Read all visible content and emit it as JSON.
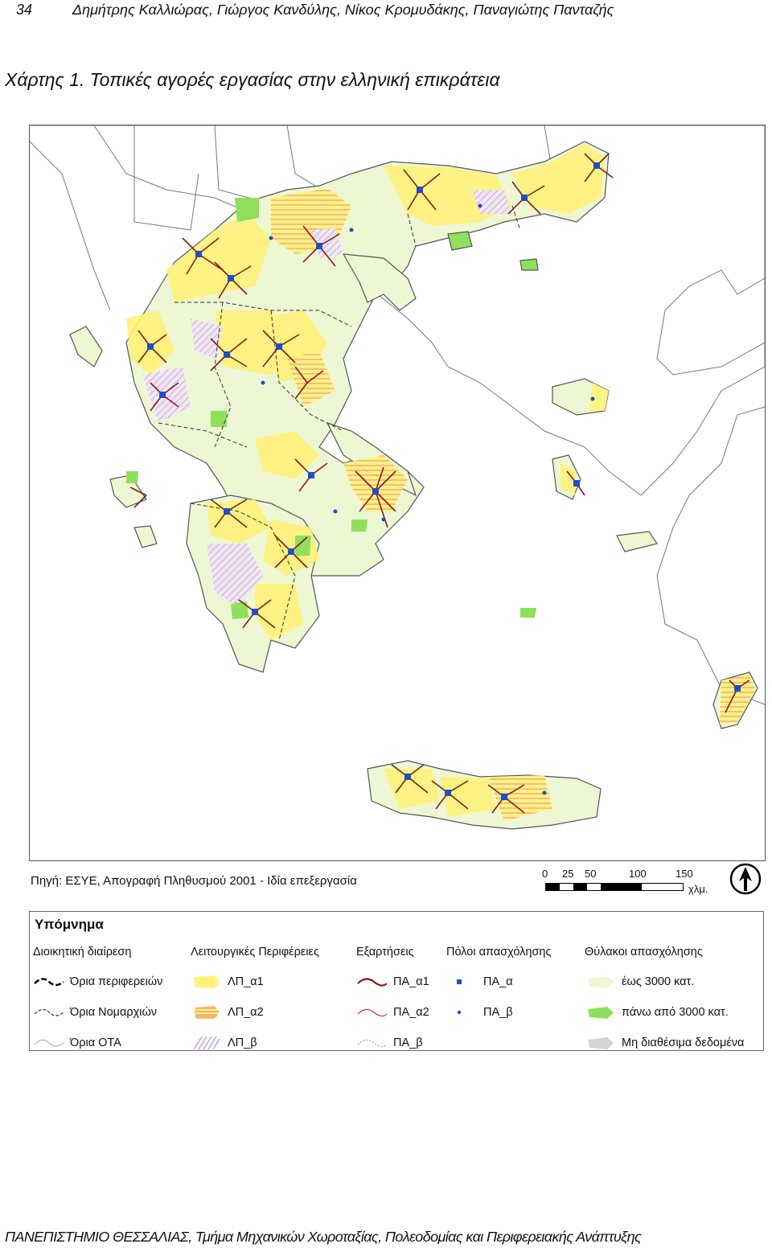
{
  "header": {
    "page_number": "34",
    "authors": "Δημήτρης Καλλιώρας, Γιώργος Κανδύλης, Νίκος Κρομυδάκης, Παναγιώτης Πανταζής"
  },
  "map": {
    "title": "Χάρτης 1. Τοπικές αγορές εργασίας στην ελληνική επικράτεια",
    "source": "Πηγή: ΕΣΥΕ, Απογραφή Πληθυσμού 2001 - Ιδία επεξεργασία",
    "scale": {
      "ticks": [
        "0",
        "25",
        "50",
        "100",
        "150"
      ],
      "unit": "χλμ."
    },
    "colors": {
      "lp_a1": "#fff27a",
      "lp_a2": "#f2b98a",
      "lp_b": "#d9b8e6",
      "low_job": "#eef7d4",
      "high_job": "#8fe05a",
      "no_data": "#d4d4d4",
      "links": "#8b1a1a",
      "poles": "#1f4fc4"
    }
  },
  "legend": {
    "title": "Υπόμνημα",
    "columns": [
      {
        "heading": "Διοικητική διαίρεση",
        "items": [
          {
            "label": "Όρια περιφερειών",
            "symbol": "region-border"
          },
          {
            "label": "Όρια Νομαρχιών",
            "symbol": "prefecture-border"
          },
          {
            "label": "Όρια ΟΤΑ",
            "symbol": "municipal-border"
          }
        ]
      },
      {
        "heading": "Λειτουργικές Περιφέρειες",
        "items": [
          {
            "label": "ΛΠ_α1",
            "symbol": "yellow-fill"
          },
          {
            "label": "ΛΠ_α2",
            "symbol": "orange-hatch"
          },
          {
            "label": "ΛΠ_β",
            "symbol": "purple-hatch"
          }
        ]
      },
      {
        "heading": "Εξαρτήσεις",
        "items": [
          {
            "label": "ΠΑ_α1",
            "symbol": "thick-link"
          },
          {
            "label": "ΠΑ_α2",
            "symbol": "thin-link"
          },
          {
            "label": "ΠΑ_β",
            "symbol": "dotted-link"
          }
        ]
      },
      {
        "heading": "Πόλοι απασχόλησης",
        "items": [
          {
            "label": "ΠΑ_α",
            "symbol": "large-dot"
          },
          {
            "label": "ΠΑ_β",
            "symbol": "small-dot"
          }
        ]
      },
      {
        "heading": "Θύλακοι απασχόλησης",
        "items": [
          {
            "label": "έως 3000 κατ.",
            "symbol": "light-green-patch"
          },
          {
            "label": "πάνω από 3000 κατ.",
            "symbol": "green-patch"
          },
          {
            "label": "Μη διαθέσιμα δεδομένα",
            "symbol": "grey-patch"
          }
        ]
      }
    ]
  },
  "footer": "ΠΑΝΕΠΙΣΤΗΜΙΟ ΘΕΣΣΑΛΙΑΣ, Τμήμα Μηχανικών Χωροταξίας, Πολεοδομίας και Περιφερειακής Ανάπτυξης"
}
